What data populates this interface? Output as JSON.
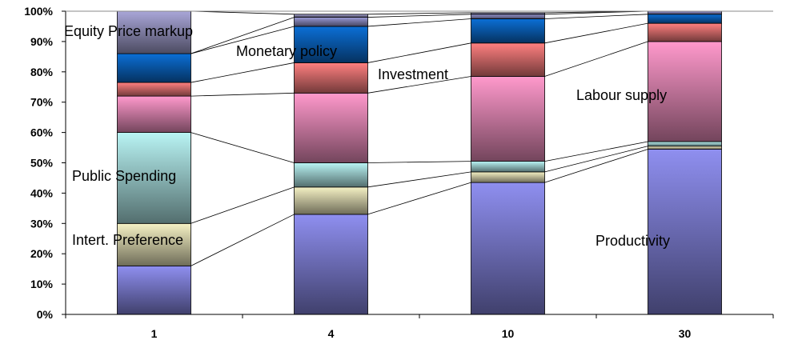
{
  "chart_data": {
    "type": "bar",
    "stacked": true,
    "percent_stacked": true,
    "categories": [
      "1",
      "4",
      "10",
      "30"
    ],
    "ylim": [
      0,
      100
    ],
    "y_ticks": [
      "0%",
      "10%",
      "20%",
      "30%",
      "40%",
      "50%",
      "60%",
      "70%",
      "80%",
      "90%",
      "100%"
    ],
    "grid": false,
    "connector_lines": true,
    "series": [
      {
        "name": "Productivity",
        "color": "#8f8ff0",
        "values": [
          16,
          33,
          43.5,
          54.5
        ]
      },
      {
        "name": "Intert. Preference",
        "color": "#f5f1c4",
        "values": [
          14,
          9,
          3.5,
          1
        ]
      },
      {
        "name": "Public Spending",
        "color": "#b9f4f4",
        "values": [
          30,
          8,
          3.5,
          1.5
        ]
      },
      {
        "name": "Labour supply",
        "color": "#ff99cc",
        "values": [
          12,
          23,
          28,
          33
        ]
      },
      {
        "name": "Investment",
        "color": "#ff8080",
        "values": [
          4.5,
          10,
          11,
          6
        ]
      },
      {
        "name": "Monetary policy",
        "color": "#0b6fd6",
        "values": [
          9.5,
          12,
          8,
          3
        ]
      },
      {
        "name": "",
        "color": "#9a9ad6",
        "values": [
          0,
          3,
          1.5,
          1
        ]
      },
      {
        "name": "Equity Price markup",
        "color": "#a9a6d8",
        "values": [
          14,
          1,
          0.5,
          0
        ]
      }
    ],
    "annotations": [
      {
        "text": "Equity Price markup"
      },
      {
        "text": "Monetary policy"
      },
      {
        "text": "Investment"
      },
      {
        "text": "Labour supply"
      },
      {
        "text": "Public Spending"
      },
      {
        "text": "Intert. Preference"
      },
      {
        "text": "Productivity"
      }
    ]
  }
}
